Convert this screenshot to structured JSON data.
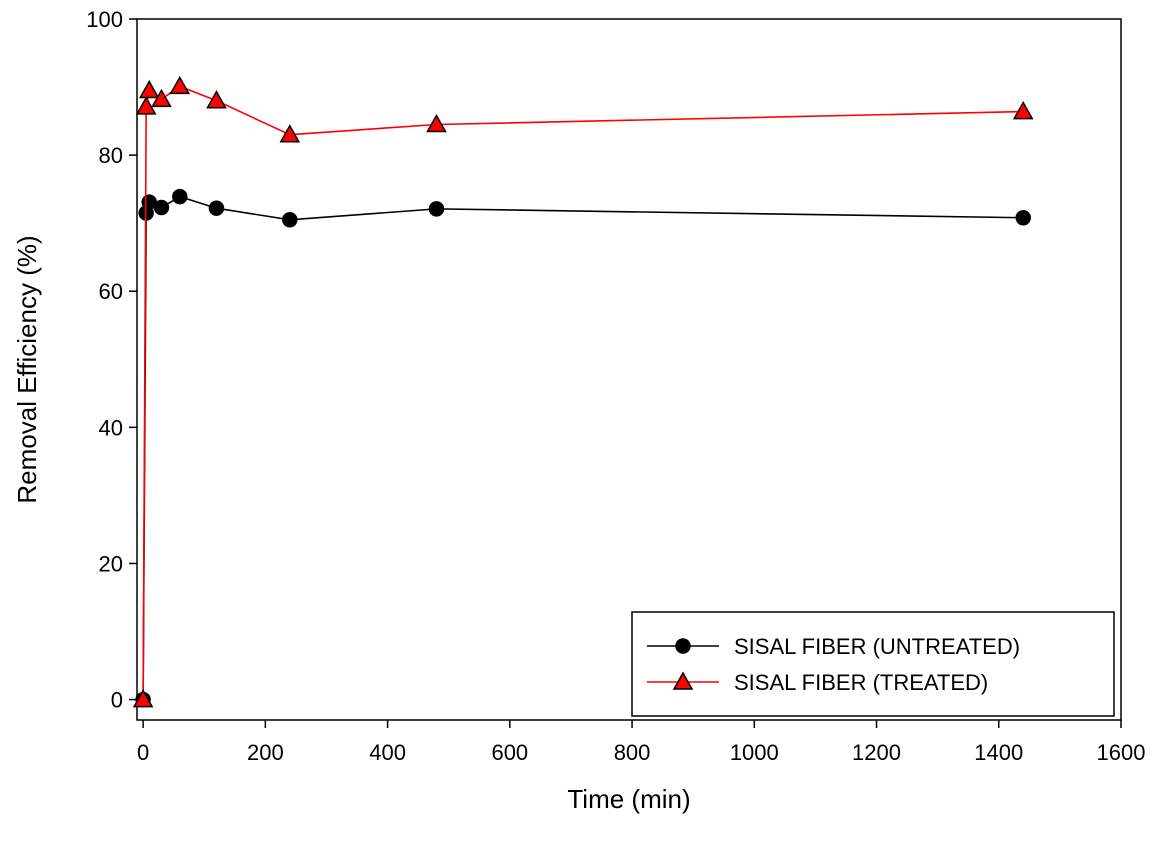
{
  "chart_data": {
    "type": "line",
    "title": "",
    "xlabel": "Time (min)",
    "ylabel": "Removal Efficiency (%)",
    "xlim": [
      -10,
      1600
    ],
    "ylim": [
      -3,
      100
    ],
    "x_ticks": [
      0,
      200,
      400,
      600,
      800,
      1000,
      1200,
      1400,
      1600
    ],
    "y_ticks": [
      0,
      20,
      40,
      60,
      80,
      100
    ],
    "grid": false,
    "legend_position": "bottom-right",
    "series": [
      {
        "name": "SISAL FIBER (UNTREATED)",
        "color": "#000000",
        "marker": "circle",
        "marker_fill": "#000000",
        "x": [
          0,
          5,
          10,
          30,
          60,
          120,
          240,
          480,
          1440
        ],
        "y": [
          0,
          71.5,
          73.1,
          72.3,
          73.9,
          72.2,
          70.5,
          72.1,
          70.8
        ]
      },
      {
        "name": "SISAL FIBER (TREATED)",
        "color": "#ff0000",
        "marker": "triangle",
        "marker_fill": "#ff0000",
        "x": [
          0,
          5,
          10,
          30,
          60,
          120,
          240,
          480,
          1440
        ],
        "y": [
          0,
          87.1,
          89.5,
          88.2,
          90.1,
          88.0,
          83.0,
          84.5,
          86.4
        ]
      }
    ]
  }
}
